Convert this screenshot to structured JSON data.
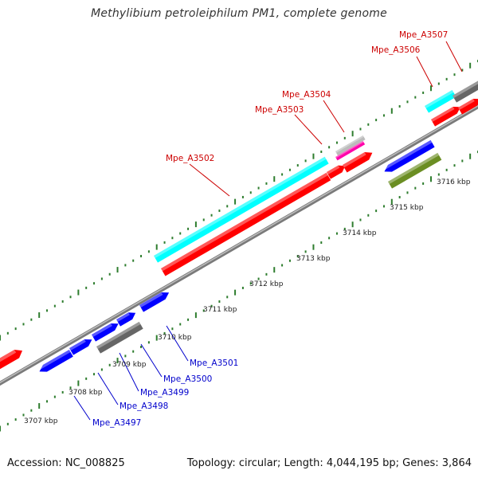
{
  "title": "Methylibium petroleiphilum PM1, complete genome",
  "footer": {
    "accession": "Accession: NC_008825",
    "summary": "Topology: circular; Length: 4,044,195 bp; Genes: 3,864"
  },
  "colors": {
    "backbone": "#808080",
    "tick": "#2e7d2e",
    "red_feature": "#ff0000",
    "cyan_feature": "#00ffff",
    "blue_feature": "#0000ff",
    "gray_feature": "#666666",
    "olive_feature": "#6b8e23",
    "magenta_feature": "#ff00aa",
    "lightgray_feature": "#bbbbbb",
    "label_red": "#cc0000",
    "label_blue": "#0000cc"
  },
  "kbp_labels": [
    "3707 kbp",
    "3708 kbp",
    "3709 kbp",
    "3710 kbp",
    "3711 kbp",
    "3712 kbp",
    "3713 kbp",
    "3714 kbp",
    "3715 kbp",
    "3716 kbp"
  ],
  "gene_labels_top": [
    "Mpe_A3502",
    "Mpe_A3503",
    "Mpe_A3504",
    "Mpe_A3506",
    "Mpe_A3507"
  ],
  "gene_labels_bottom": [
    "Mpe_A3497",
    "Mpe_A3498",
    "Mpe_A3499",
    "Mpe_A3500",
    "Mpe_A3501"
  ]
}
